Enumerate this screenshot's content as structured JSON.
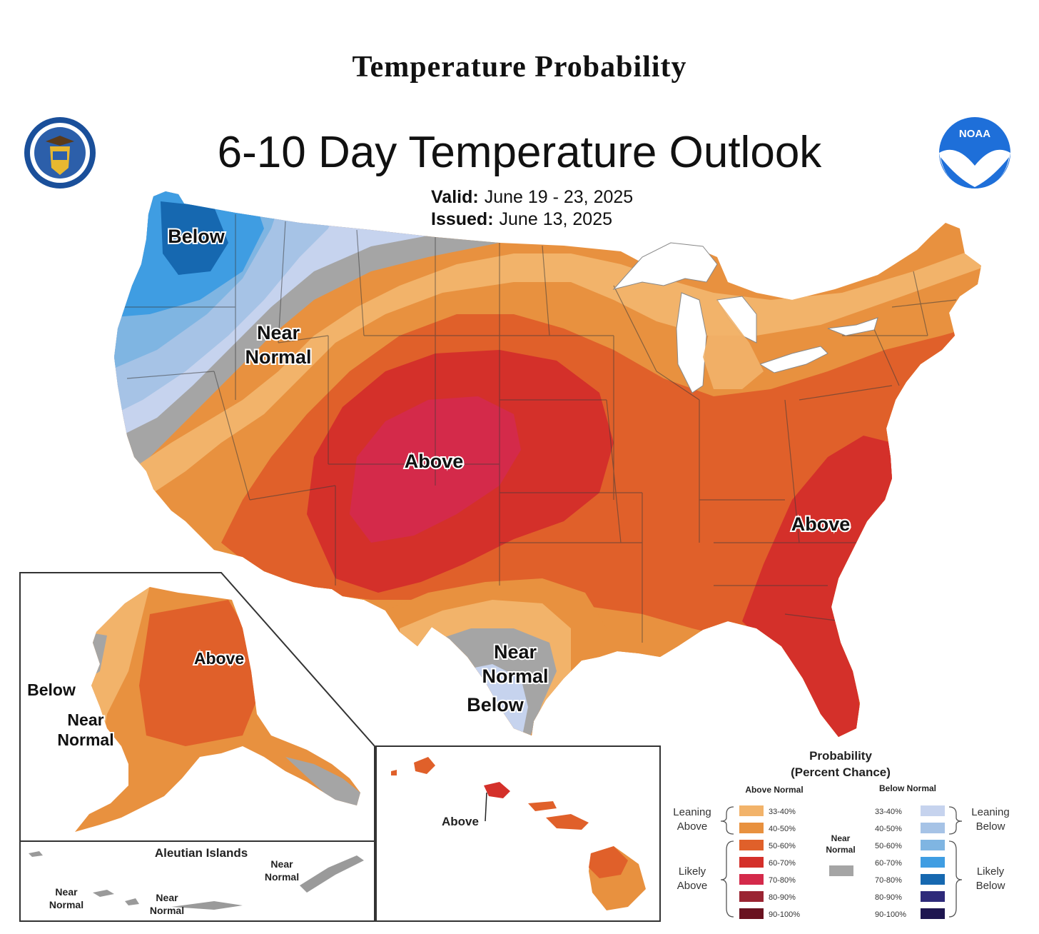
{
  "header": {
    "page_title": "Temperature Probability",
    "map_title": "6-10 Day Temperature Outlook",
    "valid_label": "Valid:",
    "valid_value": "June 19 - 23, 2025",
    "issued_label": "Issued:",
    "issued_value": "June 13, 2025"
  },
  "logos": {
    "left": "department-of-commerce-seal",
    "right": "noaa-logo",
    "noaa_text": "NOAA"
  },
  "labels": {
    "conus_below": "Below",
    "conus_near_normal_nw_1": "Near",
    "conus_near_normal_nw_2": "Normal",
    "conus_above_central": "Above",
    "conus_above_se": "Above",
    "conus_near_normal_tx_1": "Near",
    "conus_near_normal_tx_2": "Normal",
    "conus_below_tx": "Below",
    "ak_above": "Above",
    "ak_below": "Below",
    "ak_near_normal_1": "Near",
    "ak_near_normal_2": "Normal",
    "aleutian_title": "Aleutian Islands",
    "aleutian_nn_left_1": "Near",
    "aleutian_nn_left_2": "Normal",
    "aleutian_nn_mid_1": "Near",
    "aleutian_nn_mid_2": "Normal",
    "aleutian_nn_right_1": "Near",
    "aleutian_nn_right_2": "Normal",
    "hi_above": "Above"
  },
  "legend": {
    "title_1": "Probability",
    "title_2": "(Percent Chance)",
    "above_header": "Above Normal",
    "below_header": "Below Normal",
    "leaning_above_1": "Leaning",
    "leaning_above_2": "Above",
    "likely_above_1": "Likely",
    "likely_above_2": "Above",
    "near_normal_1": "Near",
    "near_normal_2": "Normal",
    "leaning_below_1": "Leaning",
    "leaning_below_2": "Below",
    "likely_below_1": "Likely",
    "likely_below_2": "Below",
    "above_items": [
      {
        "label": "33-40%",
        "color": "#f2b36a"
      },
      {
        "label": "40-50%",
        "color": "#e8913f"
      },
      {
        "label": "50-60%",
        "color": "#e0602a"
      },
      {
        "label": "60-70%",
        "color": "#d4302a"
      },
      {
        "label": "70-80%",
        "color": "#d42a4a"
      },
      {
        "label": "80-90%",
        "color": "#9a2432"
      },
      {
        "label": "90-100%",
        "color": "#6a1220"
      }
    ],
    "below_items": [
      {
        "label": "33-40%",
        "color": "#c6d3ee"
      },
      {
        "label": "40-50%",
        "color": "#a6c3e6"
      },
      {
        "label": "50-60%",
        "color": "#7fb5e2"
      },
      {
        "label": "60-70%",
        "color": "#3f9de2"
      },
      {
        "label": "70-80%",
        "color": "#1668b0"
      },
      {
        "label": "80-90%",
        "color": "#2e2a7a"
      },
      {
        "label": "90-100%",
        "color": "#1e1650"
      }
    ],
    "near_normal_color": "#a5a5a5"
  },
  "colors": {
    "near_normal": "#a5a5a5",
    "lake": "#ffffff"
  }
}
